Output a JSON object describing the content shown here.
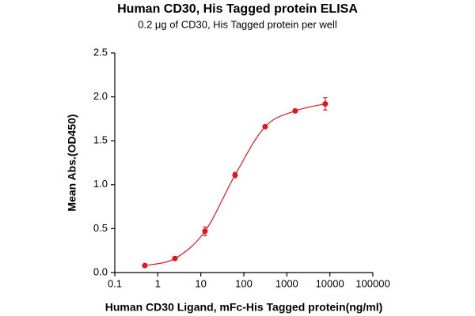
{
  "chart_data": {
    "type": "scatter",
    "title": "Human CD30, His Tagged protein ELISA",
    "subtitle": "0.2 μg of CD30, His Tagged protein per well",
    "x_label": "Human CD30 Ligand, mFc-His Tagged protein(ng/ml)",
    "y_label": "Mean Abs.(OD450)",
    "x": [
      0.5,
      2.5,
      12.5,
      62.5,
      312.5,
      1562.5,
      7812.5
    ],
    "values": [
      0.08,
      0.16,
      0.47,
      1.11,
      1.66,
      1.84,
      1.92
    ],
    "errors": [
      0.01,
      0.01,
      0.05,
      0.03,
      0.02,
      0.02,
      0.07
    ],
    "color": "#e3161e",
    "fit_curve": true,
    "xscale": "log",
    "xlim": [
      0.1,
      100000
    ],
    "xticks": [
      0.1,
      1,
      10,
      100,
      1000,
      10000,
      100000
    ],
    "ylim": [
      0,
      2.5
    ],
    "yticks": [
      {
        "value": 0,
        "label": "0.0"
      },
      {
        "value": 0.5,
        "label": "0.5"
      },
      {
        "value": 1,
        "label": "1.0"
      },
      {
        "value": 1.5,
        "label": "1.5"
      },
      {
        "value": 2,
        "label": "2.0"
      },
      {
        "value": 2.5,
        "label": "2.5"
      }
    ]
  }
}
